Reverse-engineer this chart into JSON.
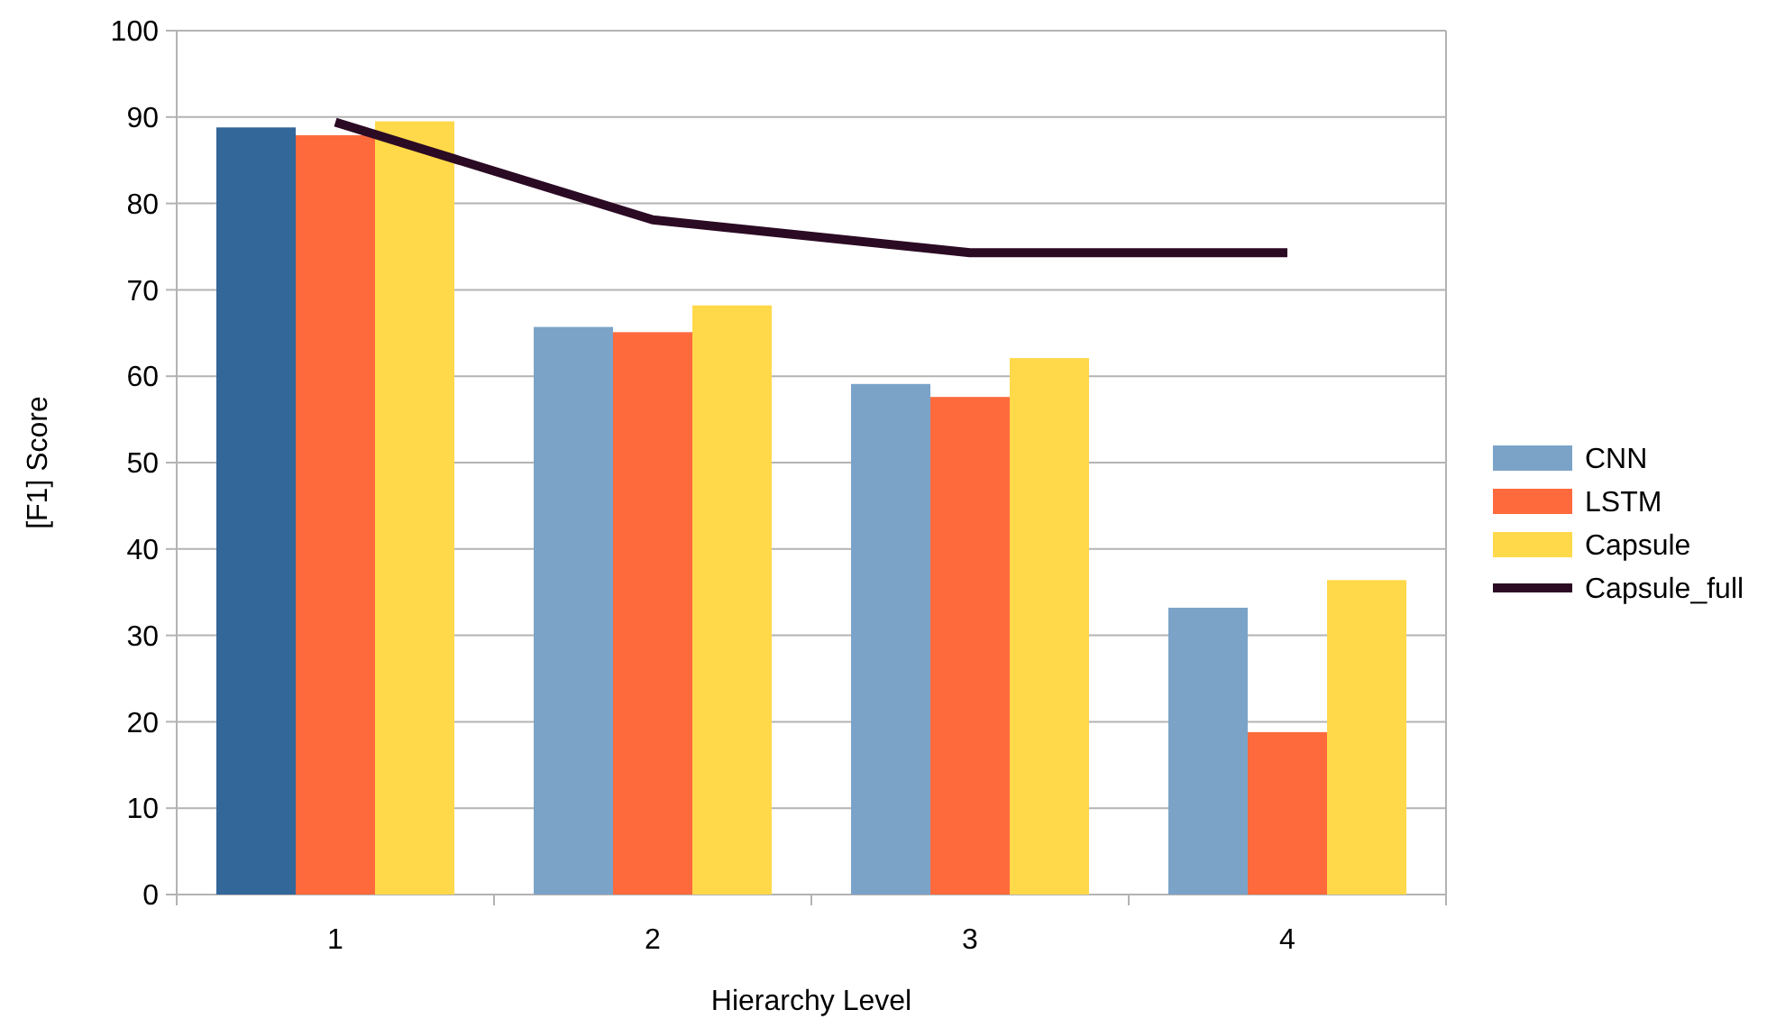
{
  "chart_data": {
    "type": "bar",
    "xlabel": "Hierarchy Level",
    "ylabel": "[F1] Score",
    "categories": [
      "1",
      "2",
      "3",
      "4"
    ],
    "series": [
      {
        "name": "CNN",
        "color": "#7ba3c8",
        "colors": [
          "#336699",
          "#7ba3c8",
          "#7ba3c8",
          "#7ba3c8"
        ],
        "values": [
          88.8,
          65.7,
          59.1,
          33.2
        ]
      },
      {
        "name": "LSTM",
        "color": "#ff6a3d",
        "values": [
          87.9,
          65.1,
          57.6,
          18.8
        ]
      },
      {
        "name": "Capsule",
        "color": "#ffd94a",
        "values": [
          89.5,
          68.2,
          62.1,
          36.4
        ]
      },
      {
        "name": "Capsule_full",
        "type": "line",
        "color": "#2b0a24",
        "values": [
          89.4,
          78.1,
          74.3,
          74.3
        ]
      }
    ],
    "ylim": [
      0,
      100
    ],
    "yticks": [
      0,
      10,
      20,
      30,
      40,
      50,
      60,
      70,
      80,
      90,
      100
    ],
    "grid": "y",
    "legend": "right"
  }
}
